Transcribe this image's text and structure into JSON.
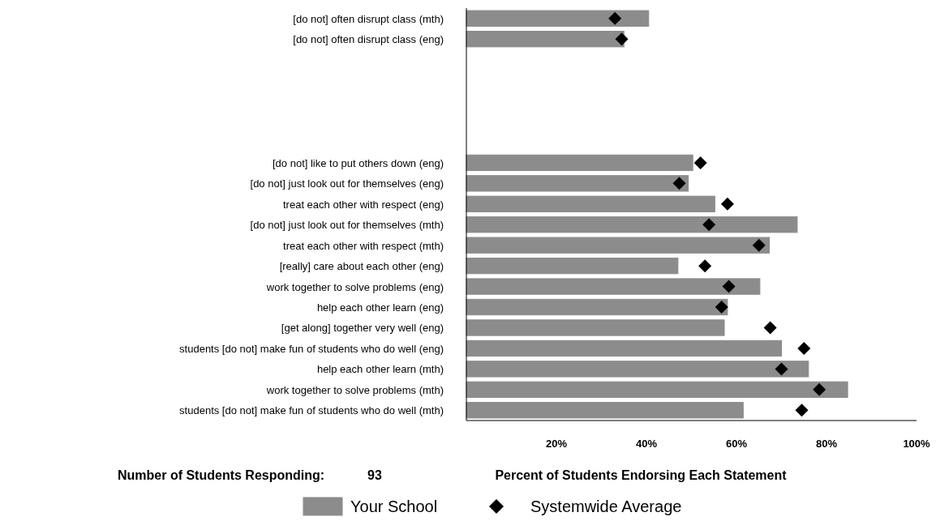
{
  "chart_data": {
    "type": "bar",
    "orientation": "horizontal",
    "categories": [
      "[do not] often disrupt class (mth)",
      "[do not] often disrupt class (eng)",
      null,
      null,
      null,
      null,
      null,
      "[do not] like to put others down (eng)",
      "[do not] just look out for themselves (eng)",
      "treat each other with respect (eng)",
      "[do not] just look out for themselves (mth)",
      "treat each other with respect (mth)",
      "[really] care about each other (eng)",
      "work together to solve problems (eng)",
      "help each other learn (eng)",
      "[get along] together very well (eng)",
      "students [do not] make fun of students who do well (eng)",
      "help each other learn (mth)",
      "work together to solve problems (mth)",
      "students [do not] make fun of students who do well (mth)"
    ],
    "series": [
      {
        "name": "Your School",
        "color": "#8c8c8c",
        "values": [
          40.5,
          35,
          null,
          null,
          null,
          null,
          null,
          50.3,
          49.3,
          55.2,
          73.5,
          67.3,
          47,
          65.2,
          58,
          57.3,
          70,
          76,
          84.7,
          61.5
        ]
      },
      {
        "name": "Systemwide Average",
        "type": "scatter",
        "marker": "diamond",
        "color": "#000000",
        "values": [
          33,
          34.5,
          null,
          null,
          null,
          null,
          null,
          52,
          47.3,
          58,
          53.9,
          65,
          53,
          58.3,
          56.7,
          67.5,
          75,
          70,
          78.4,
          74.5
        ]
      }
    ],
    "xlim": [
      0,
      100
    ],
    "xticks": [
      {
        "value": 20,
        "label": "20%"
      },
      {
        "value": 40,
        "label": "40%"
      },
      {
        "value": 60,
        "label": "60%"
      },
      {
        "value": 80,
        "label": "80%"
      },
      {
        "value": 100,
        "label": "100%"
      }
    ],
    "xlabel": "Percent of Students Endorsing Each Statement",
    "annotations": [
      "Number of Students Responding:",
      "93"
    ],
    "legend": "bottom"
  }
}
